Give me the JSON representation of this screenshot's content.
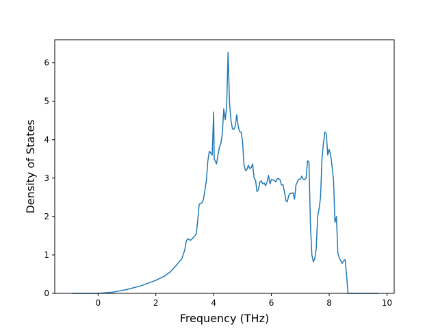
{
  "chart_data": {
    "type": "line",
    "xlabel": "Frequency (THz)",
    "ylabel": "Density of States",
    "xlim": [
      -1.5,
      10.25
    ],
    "ylim": [
      0,
      6.6
    ],
    "xticks": [
      0,
      2,
      4,
      6,
      8,
      10
    ],
    "yticks": [
      0,
      1,
      2,
      3,
      4,
      5,
      6
    ],
    "grid": false,
    "series": [
      {
        "color": "#1f77b4",
        "points": [
          [
            -0.9,
            0
          ],
          [
            -0.4,
            0
          ],
          [
            0.0,
            0.0
          ],
          [
            0.5,
            0.03
          ],
          [
            1.0,
            0.1
          ],
          [
            1.5,
            0.2
          ],
          [
            2.0,
            0.34
          ],
          [
            2.3,
            0.45
          ],
          [
            2.5,
            0.56
          ],
          [
            2.6,
            0.64
          ],
          [
            2.7,
            0.72
          ],
          [
            2.8,
            0.82
          ],
          [
            2.9,
            0.9
          ],
          [
            2.95,
            1.02
          ],
          [
            3.0,
            1.13
          ],
          [
            3.05,
            1.35
          ],
          [
            3.1,
            1.42
          ],
          [
            3.2,
            1.38
          ],
          [
            3.3,
            1.45
          ],
          [
            3.4,
            1.55
          ],
          [
            3.45,
            1.9
          ],
          [
            3.5,
            2.32
          ],
          [
            3.6,
            2.36
          ],
          [
            3.65,
            2.45
          ],
          [
            3.7,
            2.7
          ],
          [
            3.75,
            2.95
          ],
          [
            3.8,
            3.45
          ],
          [
            3.85,
            3.7
          ],
          [
            3.9,
            3.65
          ],
          [
            3.95,
            3.6
          ],
          [
            4.0,
            4.72
          ],
          [
            4.02,
            3.5
          ],
          [
            4.1,
            3.37
          ],
          [
            4.15,
            3.6
          ],
          [
            4.2,
            3.8
          ],
          [
            4.25,
            3.9
          ],
          [
            4.3,
            4.15
          ],
          [
            4.35,
            4.8
          ],
          [
            4.4,
            4.52
          ],
          [
            4.45,
            4.85
          ],
          [
            4.5,
            6.27
          ],
          [
            4.55,
            4.95
          ],
          [
            4.6,
            4.5
          ],
          [
            4.65,
            4.28
          ],
          [
            4.7,
            4.27
          ],
          [
            4.75,
            4.35
          ],
          [
            4.8,
            4.65
          ],
          [
            4.85,
            4.35
          ],
          [
            4.9,
            4.2
          ],
          [
            4.95,
            4.2
          ],
          [
            5.0,
            3.95
          ],
          [
            5.05,
            3.35
          ],
          [
            5.1,
            3.2
          ],
          [
            5.15,
            3.22
          ],
          [
            5.2,
            3.33
          ],
          [
            5.25,
            3.25
          ],
          [
            5.3,
            3.27
          ],
          [
            5.35,
            3.37
          ],
          [
            5.4,
            3.0
          ],
          [
            5.45,
            2.95
          ],
          [
            5.5,
            2.65
          ],
          [
            5.55,
            2.7
          ],
          [
            5.6,
            2.9
          ],
          [
            5.65,
            2.93
          ],
          [
            5.7,
            2.85
          ],
          [
            5.75,
            2.87
          ],
          [
            5.8,
            2.8
          ],
          [
            5.85,
            2.9
          ],
          [
            5.9,
            3.07
          ],
          [
            5.95,
            2.85
          ],
          [
            6.0,
            2.96
          ],
          [
            6.05,
            2.95
          ],
          [
            6.1,
            2.95
          ],
          [
            6.15,
            2.9
          ],
          [
            6.2,
            2.98
          ],
          [
            6.25,
            2.99
          ],
          [
            6.3,
            2.95
          ],
          [
            6.35,
            2.82
          ],
          [
            6.4,
            2.83
          ],
          [
            6.45,
            2.65
          ],
          [
            6.5,
            2.42
          ],
          [
            6.55,
            2.38
          ],
          [
            6.6,
            2.55
          ],
          [
            6.65,
            2.6
          ],
          [
            6.7,
            2.6
          ],
          [
            6.75,
            2.62
          ],
          [
            6.8,
            2.45
          ],
          [
            6.85,
            2.82
          ],
          [
            6.9,
            2.9
          ],
          [
            6.95,
            2.97
          ],
          [
            7.0,
            2.97
          ],
          [
            7.05,
            3.05
          ],
          [
            7.1,
            2.97
          ],
          [
            7.15,
            2.96
          ],
          [
            7.2,
            3.0
          ],
          [
            7.25,
            3.45
          ],
          [
            7.3,
            3.42
          ],
          [
            7.35,
            1.8
          ],
          [
            7.4,
            1.0
          ],
          [
            7.45,
            0.82
          ],
          [
            7.5,
            0.9
          ],
          [
            7.55,
            1.15
          ],
          [
            7.6,
            2.0
          ],
          [
            7.65,
            2.2
          ],
          [
            7.7,
            2.5
          ],
          [
            7.75,
            3.5
          ],
          [
            7.8,
            3.9
          ],
          [
            7.85,
            4.2
          ],
          [
            7.9,
            4.15
          ],
          [
            7.95,
            3.6
          ],
          [
            8.0,
            3.75
          ],
          [
            8.05,
            3.6
          ],
          [
            8.1,
            3.3
          ],
          [
            8.15,
            2.95
          ],
          [
            8.2,
            1.85
          ],
          [
            8.25,
            2.0
          ],
          [
            8.3,
            1.05
          ],
          [
            8.35,
            0.92
          ],
          [
            8.4,
            0.85
          ],
          [
            8.45,
            0.78
          ],
          [
            8.5,
            0.85
          ],
          [
            8.55,
            0.88
          ],
          [
            8.6,
            0.5
          ],
          [
            8.65,
            0.0
          ],
          [
            9.0,
            0.0
          ],
          [
            9.7,
            0.0
          ]
        ]
      }
    ]
  }
}
